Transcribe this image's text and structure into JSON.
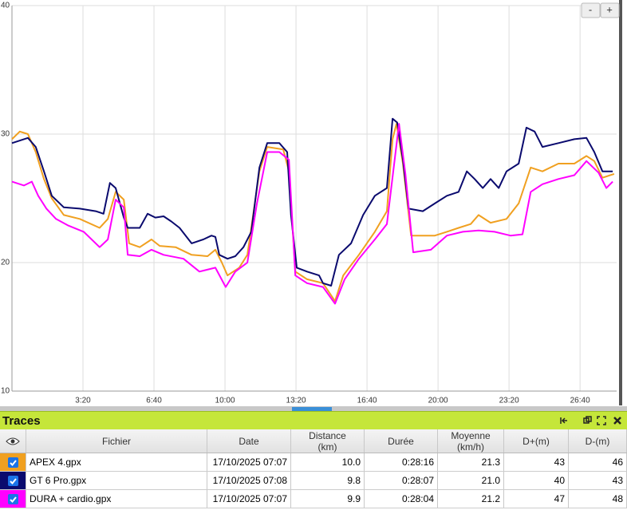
{
  "chart_data": {
    "type": "line",
    "xlim": [
      0,
      1703
    ],
    "xticks": [
      {
        "value": 200,
        "label": "3:20"
      },
      {
        "value": 400,
        "label": "6:40"
      },
      {
        "value": 600,
        "label": "10:00"
      },
      {
        "value": 800,
        "label": "13:20"
      },
      {
        "value": 1000,
        "label": "16:40"
      },
      {
        "value": 1200,
        "label": "20:00"
      },
      {
        "value": 1400,
        "label": "23:20"
      },
      {
        "value": 1600,
        "label": "26:40"
      }
    ],
    "ylim": [
      10,
      40
    ],
    "yticks": [
      10,
      20,
      30,
      40
    ],
    "grid": true,
    "series": [
      {
        "name": "APEX 4.gpx",
        "color": "#f0a020",
        "x": [
          0,
          22,
          45,
          67,
          90,
          112,
          146,
          191,
          247,
          270,
          292,
          315,
          330,
          360,
          393,
          416,
          461,
          506,
          551,
          573,
          591,
          607,
          640,
          663,
          697,
          719,
          764,
          780,
          798,
          831,
          876,
          910,
          933,
          977,
          1022,
          1056,
          1072,
          1083,
          1101,
          1124,
          1157,
          1191,
          1225,
          1258,
          1292,
          1314,
          1348,
          1393,
          1427,
          1461,
          1494,
          1539,
          1584,
          1618,
          1640,
          1663,
          1696
        ],
        "values": [
          29.6,
          30.2,
          30.0,
          28.6,
          26.5,
          25.0,
          23.7,
          23.4,
          22.7,
          23.4,
          25.5,
          24.9,
          21.5,
          21.2,
          21.8,
          21.3,
          21.2,
          20.6,
          20.5,
          21.0,
          20.0,
          19.0,
          19.6,
          20.6,
          27.1,
          29.0,
          28.8,
          27.1,
          19.3,
          18.7,
          18.4,
          17.0,
          19.0,
          20.6,
          22.4,
          24.0,
          29.6,
          30.8,
          27.7,
          22.1,
          22.1,
          22.1,
          22.4,
          22.7,
          23.0,
          23.7,
          23.1,
          23.4,
          24.6,
          27.4,
          27.1,
          27.7,
          27.7,
          28.3,
          27.9,
          26.6,
          26.9
        ]
      },
      {
        "name": "GT 6 Pro.gpx",
        "color": "#0a0a6e",
        "x": [
          0,
          45,
          67,
          90,
          112,
          146,
          191,
          236,
          258,
          276,
          292,
          315,
          326,
          360,
          382,
          404,
          427,
          449,
          472,
          506,
          539,
          562,
          573,
          584,
          607,
          629,
          652,
          674,
          697,
          719,
          753,
          775,
          786,
          802,
          831,
          865,
          876,
          899,
          921,
          955,
          989,
          1022,
          1056,
          1072,
          1085,
          1101,
          1117,
          1157,
          1191,
          1225,
          1258,
          1281,
          1303,
          1326,
          1348,
          1371,
          1393,
          1427,
          1449,
          1472,
          1494,
          1539,
          1584,
          1618,
          1640,
          1663,
          1692
        ],
        "values": [
          29.3,
          29.7,
          29.0,
          27.1,
          25.2,
          24.3,
          24.2,
          24.0,
          23.8,
          26.2,
          25.8,
          23.5,
          22.7,
          22.7,
          23.8,
          23.5,
          23.6,
          23.2,
          22.7,
          21.5,
          21.8,
          22.1,
          22.0,
          20.6,
          20.3,
          20.5,
          21.2,
          22.4,
          27.4,
          29.3,
          29.3,
          28.6,
          23.7,
          19.6,
          19.3,
          19.0,
          18.4,
          18.2,
          20.6,
          21.5,
          23.7,
          25.2,
          25.8,
          31.2,
          30.9,
          28.0,
          24.2,
          24.0,
          24.6,
          25.2,
          25.5,
          27.1,
          26.5,
          25.8,
          26.5,
          25.8,
          27.1,
          27.7,
          30.5,
          30.2,
          29.0,
          29.3,
          29.6,
          29.7,
          28.6,
          27.1,
          27.1
        ]
      },
      {
        "name": "DURA + cardio.gpx",
        "color": "#ff00ff",
        "x": [
          0,
          34,
          56,
          74,
          97,
          124,
          157,
          202,
          247,
          270,
          292,
          315,
          326,
          360,
          393,
          427,
          483,
          528,
          573,
          602,
          629,
          663,
          690,
          719,
          753,
          780,
          798,
          831,
          876,
          910,
          937,
          977,
          1022,
          1056,
          1090,
          1108,
          1130,
          1180,
          1225,
          1270,
          1314,
          1359,
          1404,
          1438,
          1461,
          1494,
          1539,
          1584,
          1618,
          1652,
          1674,
          1692
        ],
        "values": [
          26.3,
          26.0,
          26.3,
          25.2,
          24.2,
          23.4,
          22.9,
          22.4,
          21.2,
          21.8,
          24.9,
          24.3,
          20.6,
          20.5,
          21.0,
          20.6,
          20.3,
          19.3,
          19.6,
          18.1,
          19.3,
          20.0,
          24.6,
          28.6,
          28.6,
          28.0,
          19.0,
          18.4,
          18.1,
          16.8,
          18.7,
          20.3,
          21.8,
          23.0,
          30.8,
          26.9,
          20.8,
          21.0,
          22.1,
          22.4,
          22.5,
          22.4,
          22.1,
          22.2,
          25.5,
          26.1,
          26.5,
          26.8,
          27.9,
          27.0,
          25.8,
          26.3
        ]
      }
    ]
  },
  "zoom": {
    "minus": "-",
    "plus": "+"
  },
  "table": {
    "title": "Traces",
    "columns": [
      [
        "Fichier"
      ],
      [
        "Date"
      ],
      [
        "Distance",
        "(km)"
      ],
      [
        "Durée"
      ],
      [
        "Moyenne",
        "(km/h)"
      ],
      [
        "D+(m)"
      ],
      [
        "D-(m)"
      ]
    ],
    "rows": [
      [
        "APEX 4.gpx",
        "17/10/2025 07:07",
        "10.0",
        "0:28:16",
        "21.3",
        "43",
        "46"
      ],
      [
        "GT 6 Pro.gpx",
        "17/10/2025 07:08",
        "9.8",
        "0:28:07",
        "21.0",
        "40",
        "43"
      ],
      [
        "DURA + cardio.gpx",
        "17/10/2025 07:07",
        "9.9",
        "0:28:04",
        "21.2",
        "47",
        "48"
      ]
    ]
  }
}
